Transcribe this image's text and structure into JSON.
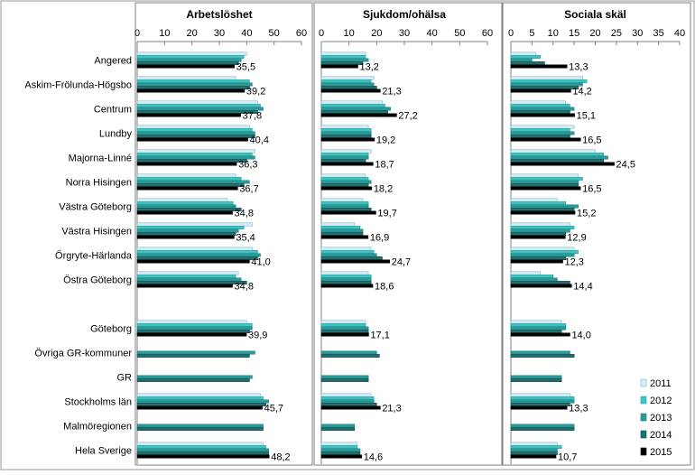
{
  "chart_data": {
    "type": "bar",
    "orientation": "horizontal",
    "legend_position": "bottom-right",
    "series_names": [
      "2011",
      "2012",
      "2013",
      "2014",
      "2015"
    ],
    "series_colors": [
      "#dcebf0",
      "#3fc2c2",
      "#2a9a98",
      "#226e70",
      "#000000"
    ],
    "categories": [
      "Angered",
      "Askim-Frölunda-Högsbo",
      "Centrum",
      "Lundby",
      "Majorna-Linné",
      "Norra Hisingen",
      "Västra Göteborg",
      "Västra Hisingen",
      "Örgryte-Härlanda",
      "Östra Göteborg",
      "",
      "Göteborg",
      "Övriga GR-kommuner",
      "GR",
      "Stockholms län",
      "Malmöregionen",
      "Hela Sverige"
    ],
    "panels": [
      {
        "title": "Arbetslöshet",
        "xlim": [
          0,
          60
        ],
        "ticks": [
          "0",
          "10",
          "20",
          "30",
          "40",
          "50",
          "60"
        ],
        "groups": [
          {
            "values": [
              40,
              39,
              38,
              37,
              35.5
            ],
            "label": "35,5"
          },
          {
            "values": [
              36,
              41,
              42,
              41,
              39.2
            ],
            "label": "39,2"
          },
          {
            "values": [
              44,
              45,
              46,
              44,
              37.8
            ],
            "label": "37,8"
          },
          {
            "values": [
              41,
              42,
              43,
              43,
              40.4
            ],
            "label": "40,4"
          },
          {
            "values": [
              43,
              42,
              43,
              40,
              36.3
            ],
            "label": "36,3"
          },
          {
            "values": [
              36,
              38,
              41,
              39,
              36.7
            ],
            "label": "36,7"
          },
          {
            "values": [
              33,
              35,
              36,
              38,
              34.8
            ],
            "label": "34,8"
          },
          {
            "values": [
              42,
              39,
              37,
              36,
              35.4
            ],
            "label": "35,4"
          },
          {
            "values": [
              42,
              44,
              45,
              44,
              41.0
            ],
            "label": "41,0"
          },
          {
            "values": [
              37,
              36,
              38,
              40,
              34.8
            ],
            "label": "34,8"
          },
          {
            "values": [
              null,
              null,
              null,
              null,
              null
            ],
            "label": ""
          },
          {
            "values": [
              40,
              42,
              42,
              41,
              39.9
            ],
            "label": "39,9"
          },
          {
            "values": [
              null,
              null,
              43,
              41,
              null
            ],
            "label": ""
          },
          {
            "values": [
              null,
              null,
              42,
              41,
              null
            ],
            "label": ""
          },
          {
            "values": [
              45,
              46,
              48,
              47,
              45.7
            ],
            "label": "45,7"
          },
          {
            "values": [
              null,
              null,
              46,
              46,
              null
            ],
            "label": ""
          },
          {
            "values": [
              46,
              47,
              48,
              48,
              48.2
            ],
            "label": "48,2"
          }
        ]
      },
      {
        "title": "Sjukdom/ohälsa",
        "xlim": [
          0,
          60
        ],
        "ticks": [
          "0",
          "10",
          "20",
          "30",
          "40",
          "50",
          "60"
        ],
        "groups": [
          {
            "values": [
              16,
              16,
              17,
              15,
              13.2
            ],
            "label": "13,2"
          },
          {
            "values": [
              19,
              18,
              19,
              20,
              21.3
            ],
            "label": "21,3"
          },
          {
            "values": [
              22,
              23,
              25,
              24,
              27.2
            ],
            "label": "27,2"
          },
          {
            "values": [
              17,
              18,
              18,
              18,
              19.2
            ],
            "label": "19,2"
          },
          {
            "values": [
              18,
              17,
              17,
              16,
              18.7
            ],
            "label": "18,7"
          },
          {
            "values": [
              16,
              17,
              18,
              17,
              18.2
            ],
            "label": "18,2"
          },
          {
            "values": [
              15,
              17,
              17,
              18,
              19.7
            ],
            "label": "19,7"
          },
          {
            "values": [
              12,
              14,
              15,
              15,
              16.9
            ],
            "label": "16,9"
          },
          {
            "values": [
              18,
              19,
              20,
              22,
              24.7
            ],
            "label": "24,7"
          },
          {
            "values": [
              17,
              18,
              18,
              18,
              18.6
            ],
            "label": "18,6"
          },
          {
            "values": [
              null,
              null,
              null,
              null,
              null
            ],
            "label": ""
          },
          {
            "values": [
              16,
              16,
              17,
              17,
              17.1
            ],
            "label": "17,1"
          },
          {
            "values": [
              null,
              null,
              20,
              21,
              null
            ],
            "label": ""
          },
          {
            "values": [
              null,
              null,
              17,
              17,
              null
            ],
            "label": ""
          },
          {
            "values": [
              18,
              19,
              19,
              20,
              21.3
            ],
            "label": "21,3"
          },
          {
            "values": [
              null,
              null,
              12,
              12,
              null
            ],
            "label": ""
          },
          {
            "values": [
              13,
              13,
              14,
              14,
              14.6
            ],
            "label": "14,6"
          }
        ]
      },
      {
        "title": "Sociala skäl",
        "xlim": [
          0,
          40
        ],
        "ticks": [
          "0",
          "5",
          "10",
          "15",
          "20",
          "25",
          "30",
          "35",
          "40"
        ],
        "groups": [
          {
            "values": [
              6,
              7,
              5,
              8,
              13.3
            ],
            "label": "13,3"
          },
          {
            "values": [
              17,
              18,
              17,
              16,
              14.2
            ],
            "label": "14,2"
          },
          {
            "values": [
              13,
              14,
              15,
              14,
              15.1
            ],
            "label": "15,1"
          },
          {
            "values": [
              15,
              14,
              15,
              14,
              16.5
            ],
            "label": "16,5"
          },
          {
            "values": [
              20,
              22,
              23,
              22,
              24.5
            ],
            "label": "24,5"
          },
          {
            "values": [
              16,
              17,
              16,
              16,
              16.5
            ],
            "label": "16,5"
          },
          {
            "values": [
              11,
              13,
              16,
              15,
              15.2
            ],
            "label": "15,2"
          },
          {
            "values": [
              14,
              15,
              14,
              13,
              12.9
            ],
            "label": "12,9"
          },
          {
            "values": [
              15,
              16,
              15,
              13,
              12.3
            ],
            "label": "12,3"
          },
          {
            "values": [
              7,
              10,
              11,
              14,
              14.4
            ],
            "label": "14,4"
          },
          {
            "values": [
              null,
              null,
              null,
              null,
              null
            ],
            "label": ""
          },
          {
            "values": [
              12,
              13,
              13,
              12,
              14.0
            ],
            "label": "14,0"
          },
          {
            "values": [
              null,
              null,
              14,
              15,
              null
            ],
            "label": ""
          },
          {
            "values": [
              null,
              null,
              12,
              12,
              null
            ],
            "label": ""
          },
          {
            "values": [
              14,
              15,
              15,
              14,
              13.3
            ],
            "label": "13,3"
          },
          {
            "values": [
              null,
              null,
              15,
              15,
              null
            ],
            "label": ""
          },
          {
            "values": [
              11,
              12,
              11,
              11,
              10.7
            ],
            "label": "10,7"
          }
        ]
      }
    ]
  }
}
